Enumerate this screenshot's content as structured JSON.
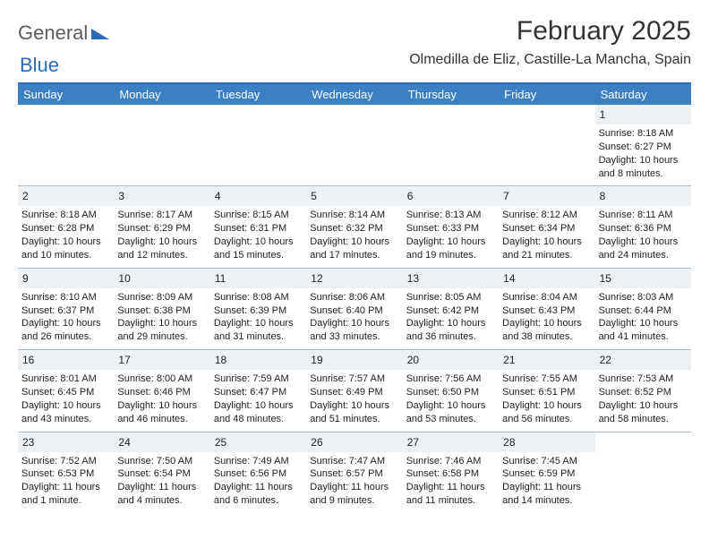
{
  "logo": {
    "part1": "General",
    "part2": "Blue"
  },
  "title": "February 2025",
  "location": "Olmedilla de Eliz, Castille-La Mancha, Spain",
  "colors": {
    "header_bar": "#3b7fc4",
    "top_rule": "#2a6db5",
    "daynum_bg": "#eef1f4",
    "week_rule": "#aabdd0",
    "logo_gray": "#5c5c5c",
    "logo_blue": "#2a6db5"
  },
  "day_headers": [
    "Sunday",
    "Monday",
    "Tuesday",
    "Wednesday",
    "Thursday",
    "Friday",
    "Saturday"
  ],
  "weeks": [
    [
      null,
      null,
      null,
      null,
      null,
      null,
      {
        "n": "1",
        "sunrise": "8:18 AM",
        "sunset": "6:27 PM",
        "daylight": "10 hours and 8 minutes."
      }
    ],
    [
      {
        "n": "2",
        "sunrise": "8:18 AM",
        "sunset": "6:28 PM",
        "daylight": "10 hours and 10 minutes."
      },
      {
        "n": "3",
        "sunrise": "8:17 AM",
        "sunset": "6:29 PM",
        "daylight": "10 hours and 12 minutes."
      },
      {
        "n": "4",
        "sunrise": "8:15 AM",
        "sunset": "6:31 PM",
        "daylight": "10 hours and 15 minutes."
      },
      {
        "n": "5",
        "sunrise": "8:14 AM",
        "sunset": "6:32 PM",
        "daylight": "10 hours and 17 minutes."
      },
      {
        "n": "6",
        "sunrise": "8:13 AM",
        "sunset": "6:33 PM",
        "daylight": "10 hours and 19 minutes."
      },
      {
        "n": "7",
        "sunrise": "8:12 AM",
        "sunset": "6:34 PM",
        "daylight": "10 hours and 21 minutes."
      },
      {
        "n": "8",
        "sunrise": "8:11 AM",
        "sunset": "6:36 PM",
        "daylight": "10 hours and 24 minutes."
      }
    ],
    [
      {
        "n": "9",
        "sunrise": "8:10 AM",
        "sunset": "6:37 PM",
        "daylight": "10 hours and 26 minutes."
      },
      {
        "n": "10",
        "sunrise": "8:09 AM",
        "sunset": "6:38 PM",
        "daylight": "10 hours and 29 minutes."
      },
      {
        "n": "11",
        "sunrise": "8:08 AM",
        "sunset": "6:39 PM",
        "daylight": "10 hours and 31 minutes."
      },
      {
        "n": "12",
        "sunrise": "8:06 AM",
        "sunset": "6:40 PM",
        "daylight": "10 hours and 33 minutes."
      },
      {
        "n": "13",
        "sunrise": "8:05 AM",
        "sunset": "6:42 PM",
        "daylight": "10 hours and 36 minutes."
      },
      {
        "n": "14",
        "sunrise": "8:04 AM",
        "sunset": "6:43 PM",
        "daylight": "10 hours and 38 minutes."
      },
      {
        "n": "15",
        "sunrise": "8:03 AM",
        "sunset": "6:44 PM",
        "daylight": "10 hours and 41 minutes."
      }
    ],
    [
      {
        "n": "16",
        "sunrise": "8:01 AM",
        "sunset": "6:45 PM",
        "daylight": "10 hours and 43 minutes."
      },
      {
        "n": "17",
        "sunrise": "8:00 AM",
        "sunset": "6:46 PM",
        "daylight": "10 hours and 46 minutes."
      },
      {
        "n": "18",
        "sunrise": "7:59 AM",
        "sunset": "6:47 PM",
        "daylight": "10 hours and 48 minutes."
      },
      {
        "n": "19",
        "sunrise": "7:57 AM",
        "sunset": "6:49 PM",
        "daylight": "10 hours and 51 minutes."
      },
      {
        "n": "20",
        "sunrise": "7:56 AM",
        "sunset": "6:50 PM",
        "daylight": "10 hours and 53 minutes."
      },
      {
        "n": "21",
        "sunrise": "7:55 AM",
        "sunset": "6:51 PM",
        "daylight": "10 hours and 56 minutes."
      },
      {
        "n": "22",
        "sunrise": "7:53 AM",
        "sunset": "6:52 PM",
        "daylight": "10 hours and 58 minutes."
      }
    ],
    [
      {
        "n": "23",
        "sunrise": "7:52 AM",
        "sunset": "6:53 PM",
        "daylight": "11 hours and 1 minute."
      },
      {
        "n": "24",
        "sunrise": "7:50 AM",
        "sunset": "6:54 PM",
        "daylight": "11 hours and 4 minutes."
      },
      {
        "n": "25",
        "sunrise": "7:49 AM",
        "sunset": "6:56 PM",
        "daylight": "11 hours and 6 minutes."
      },
      {
        "n": "26",
        "sunrise": "7:47 AM",
        "sunset": "6:57 PM",
        "daylight": "11 hours and 9 minutes."
      },
      {
        "n": "27",
        "sunrise": "7:46 AM",
        "sunset": "6:58 PM",
        "daylight": "11 hours and 11 minutes."
      },
      {
        "n": "28",
        "sunrise": "7:45 AM",
        "sunset": "6:59 PM",
        "daylight": "11 hours and 14 minutes."
      },
      null
    ]
  ],
  "labels": {
    "sunrise": "Sunrise: ",
    "sunset": "Sunset: ",
    "daylight": "Daylight: "
  }
}
